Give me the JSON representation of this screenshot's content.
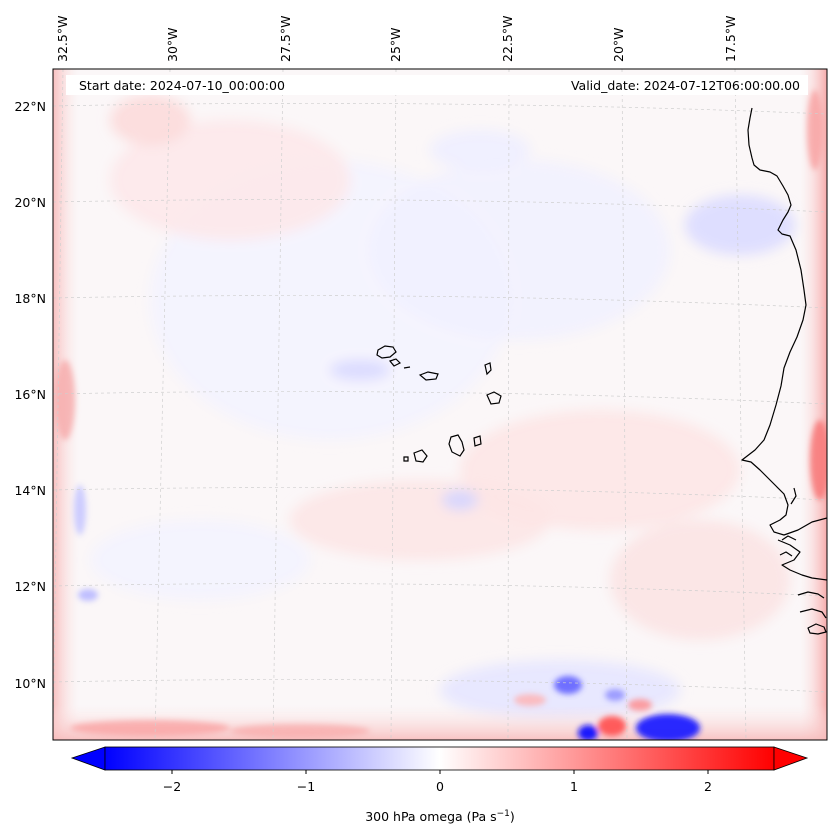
{
  "header": {
    "start_date": "Start date: 2024-07-10_00:00:00",
    "valid_date": "Valid_date: 2024-07-12T06:00:00.00"
  },
  "map": {
    "longitude_labels": [
      "32.5°W",
      "30°W",
      "27.5°W",
      "25°W",
      "22.5°W",
      "20°W",
      "17.5°W"
    ],
    "latitude_labels": [
      "22°N",
      "20°N",
      "18°N",
      "16°N",
      "14°N",
      "12°N",
      "10°N"
    ],
    "colors": {
      "negative_max": "#0000ff",
      "neutral": "#ffffff",
      "positive_max": "#ff0000",
      "coastline": "#000000",
      "gridline": "#c8c8c8"
    }
  },
  "colorbar": {
    "ticks": [
      "−2",
      "−1",
      "0",
      "1",
      "2"
    ],
    "label_prefix": "300 hPa omega (Pa s",
    "label_exponent": "−1",
    "label_suffix": ")",
    "range": [
      -2.6,
      2.6
    ],
    "extend": "both"
  }
}
